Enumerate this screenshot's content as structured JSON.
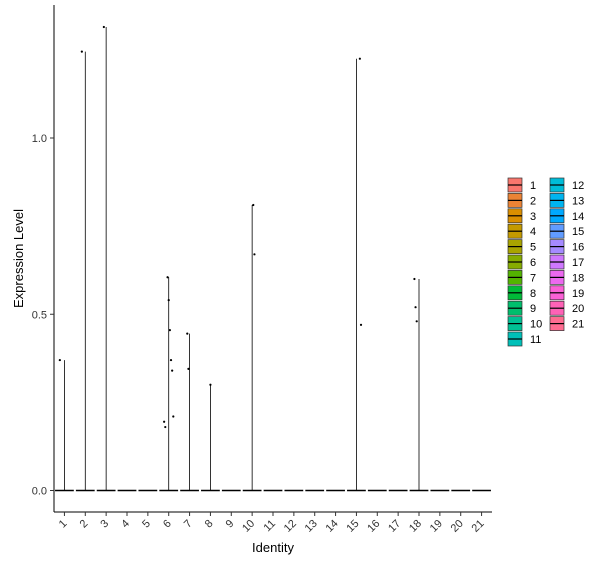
{
  "chart_data": {
    "type": "violin",
    "title": "",
    "xlabel": "Identity",
    "ylabel": "Expression Level",
    "categories": [
      "1",
      "2",
      "3",
      "4",
      "5",
      "6",
      "7",
      "8",
      "9",
      "10",
      "11",
      "12",
      "13",
      "14",
      "15",
      "16",
      "17",
      "18",
      "19",
      "20",
      "21"
    ],
    "ylim": [
      -0.05,
      1.37
    ],
    "yticks": [
      0.0,
      0.5,
      1.0
    ],
    "ytick_labels": [
      "0.0",
      "0.5",
      "1.0"
    ],
    "grid": false,
    "legend_position": "right",
    "colors": [
      "#F8766D",
      "#EB8335",
      "#DA8F00",
      "#C49A00",
      "#A9A400",
      "#86AC00",
      "#53B400",
      "#00BA38",
      "#00BE6D",
      "#00C094",
      "#00C0B8",
      "#00BCD8",
      "#00B4EF",
      "#00A9FF",
      "#619CFF",
      "#A58AFF",
      "#CF78FF",
      "#EC69EF",
      "#FB61D7",
      "#FF62B6",
      "#FF6C91"
    ],
    "violin_max": [
      0.37,
      1.245,
      1.315,
      0.0,
      0.0,
      0.605,
      0.445,
      0.3,
      0.0,
      0.81,
      0.0,
      0.0,
      0.0,
      0.0,
      1.225,
      0.0,
      0.0,
      0.6,
      0.0,
      0.0,
      0.0
    ],
    "points": [
      {
        "group": "1",
        "y": 0.37
      },
      {
        "group": "2",
        "y": 1.245
      },
      {
        "group": "3",
        "y": 1.315
      },
      {
        "group": "6",
        "y": 0.605
      },
      {
        "group": "6",
        "y": 0.54
      },
      {
        "group": "6",
        "y": 0.455
      },
      {
        "group": "6",
        "y": 0.37
      },
      {
        "group": "6",
        "y": 0.34
      },
      {
        "group": "6",
        "y": 0.21
      },
      {
        "group": "6",
        "y": 0.195
      },
      {
        "group": "6",
        "y": 0.18
      },
      {
        "group": "7",
        "y": 0.445
      },
      {
        "group": "7",
        "y": 0.345
      },
      {
        "group": "8",
        "y": 0.3
      },
      {
        "group": "10",
        "y": 0.81
      },
      {
        "group": "10",
        "y": 0.67
      },
      {
        "group": "15",
        "y": 1.225
      },
      {
        "group": "15",
        "y": 0.47
      },
      {
        "group": "18",
        "y": 0.6
      },
      {
        "group": "18",
        "y": 0.52
      },
      {
        "group": "18",
        "y": 0.48
      }
    ]
  }
}
